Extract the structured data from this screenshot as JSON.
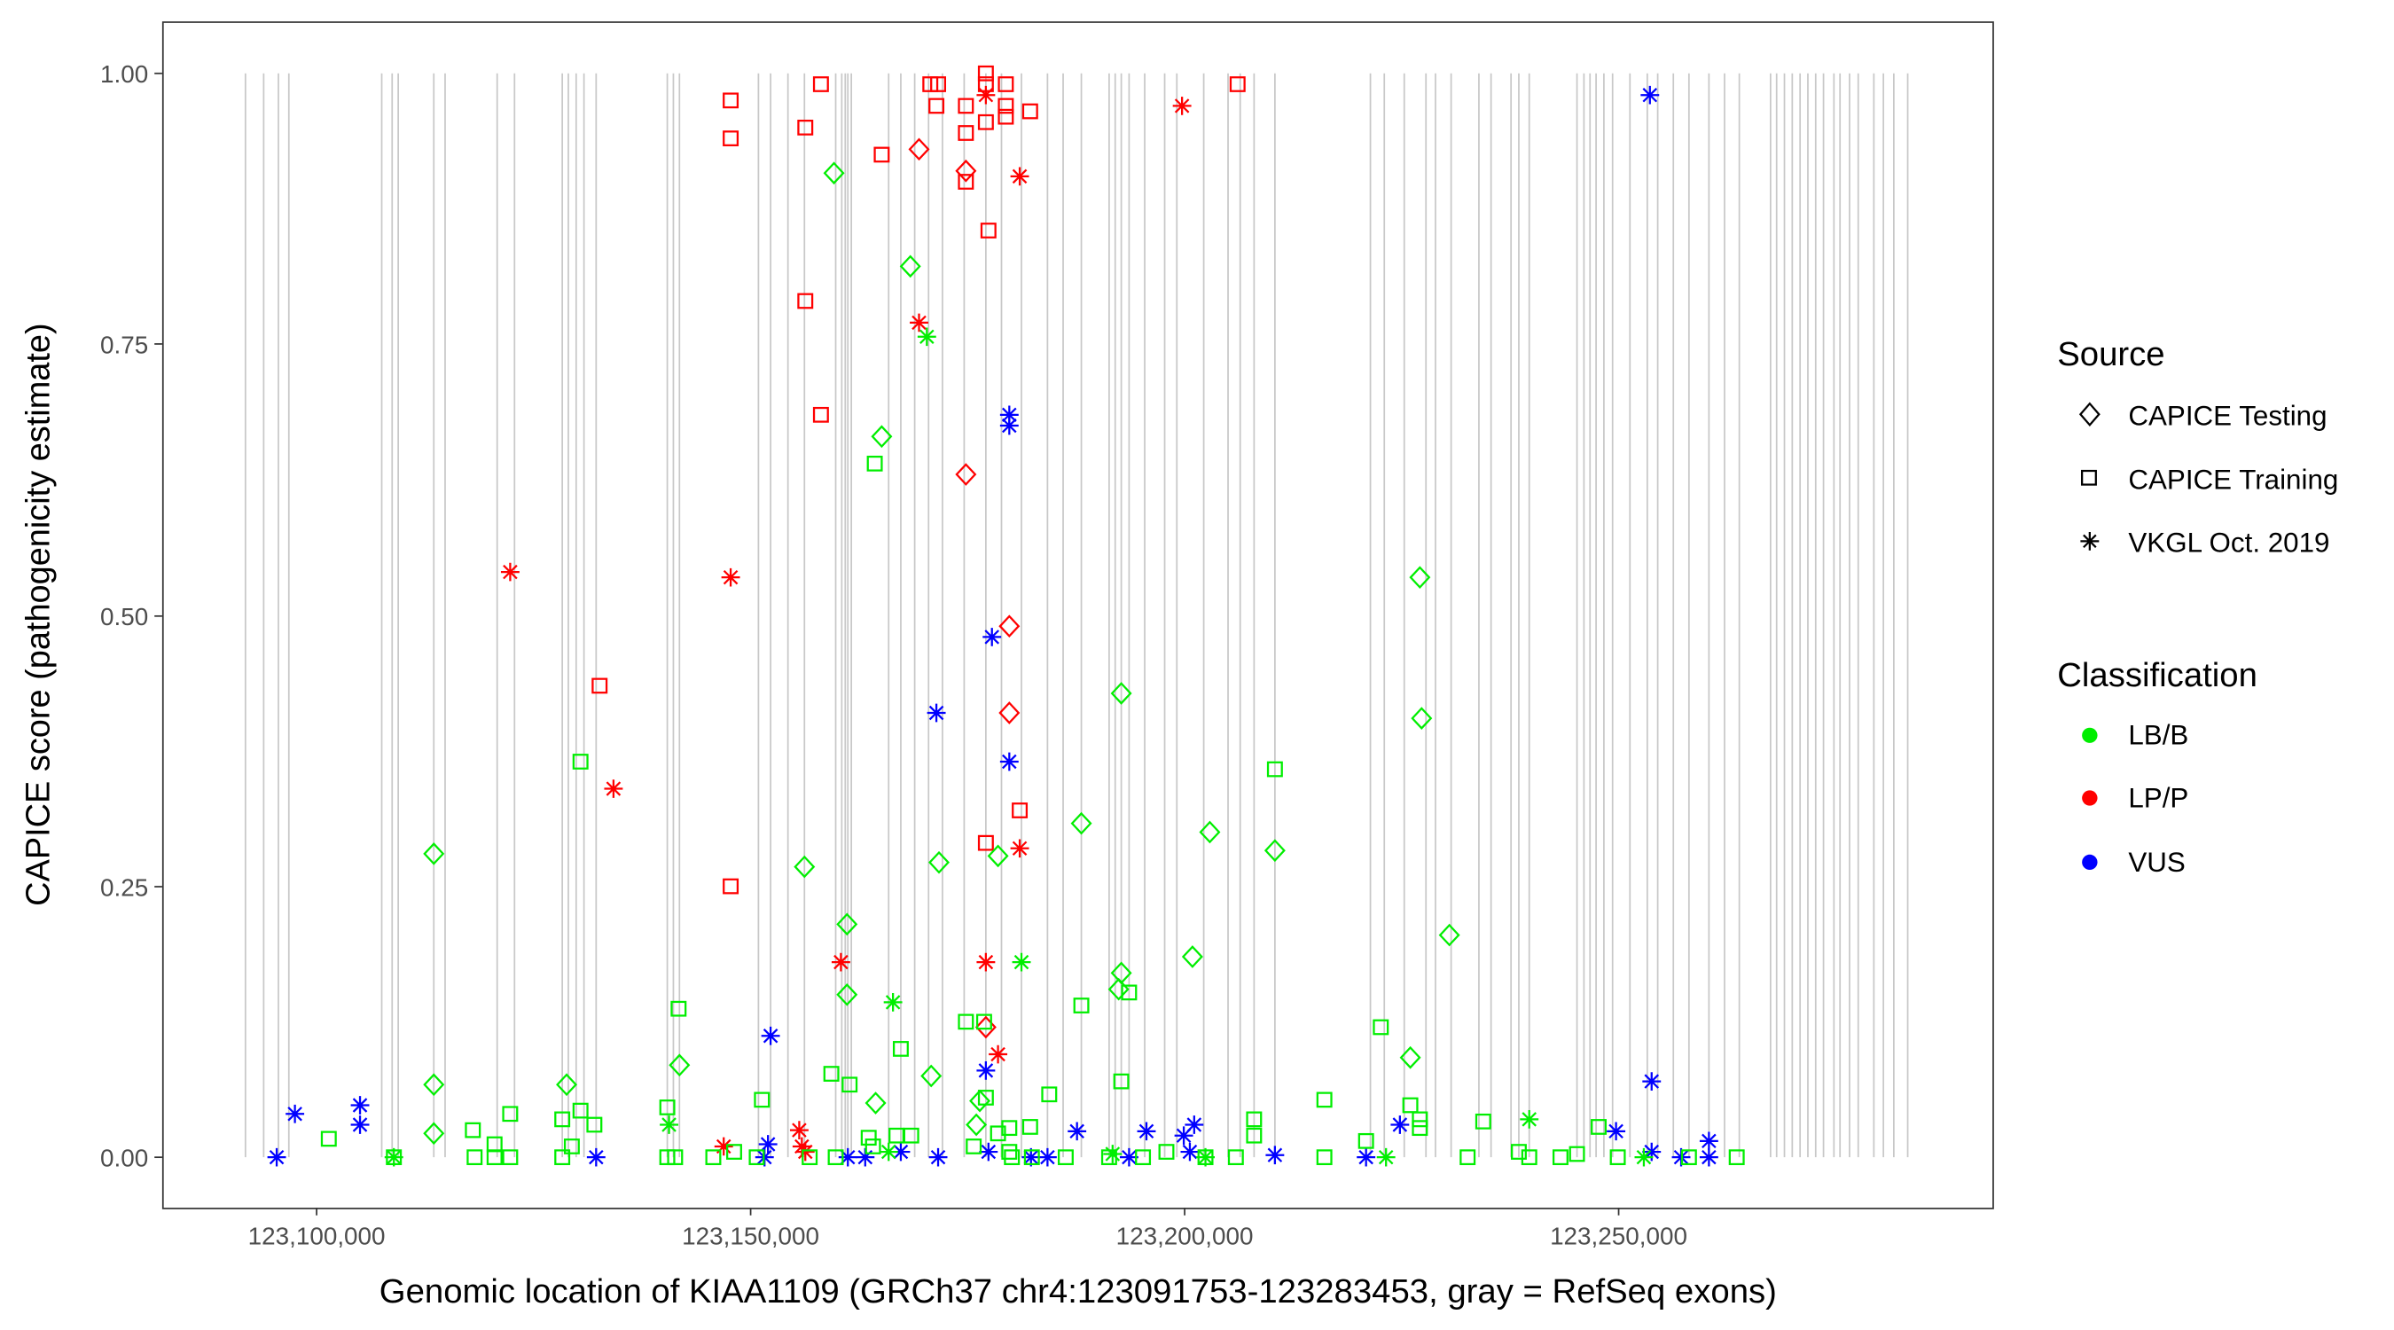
{
  "chart_data": {
    "type": "scatter",
    "xlabel": "Genomic location of KIAA1109 (GRCh37 chr4:123091753-123283453, gray = RefSeq exons)",
    "ylabel": "CAPICE score (pathogenicity estimate)",
    "x_unit": "kb",
    "xlim": [
      123088.5,
      123285.5
    ],
    "ylim": [
      -0.05,
      1.05
    ],
    "x_ticks": [
      123100,
      123150,
      123200,
      123250
    ],
    "x_tick_labels": [
      "123,100,000",
      "123,150,000",
      "123,200,000",
      "123,250,000"
    ],
    "y_ticks": [
      0,
      0.25,
      0.5,
      0.75,
      1.0
    ],
    "y_tick_labels": [
      "0.00",
      "0.25",
      "0.50",
      "0.75",
      "1.00"
    ],
    "grid": false,
    "legend_placement": "right",
    "legend": {
      "source_title": "Source",
      "sources": [
        "CAPICE Testing",
        "CAPICE Training",
        "VKGL Oct. 2019"
      ],
      "source_shapes": [
        "diamond",
        "square",
        "asterisk"
      ],
      "class_title": "Classification",
      "classes": [
        "LB/B",
        "LP/P",
        "VUS"
      ],
      "class_colors": [
        "#00ee00",
        "#ff0000",
        "#0000ff"
      ]
    },
    "exon_color": "#c8c8c8",
    "exons_kb": [
      123091.8,
      123093.9,
      123095.6,
      123096.8,
      123107.5,
      123108.7,
      123109.4,
      123113.5,
      123114.8,
      123120.8,
      123122.8,
      123128.3,
      123129.0,
      123129.9,
      123130.8,
      123132.2,
      123140.4,
      123141.1,
      123141.8,
      123150.9,
      123152.3,
      123154.3,
      123156.2,
      123159.8,
      123160.5,
      123160.9,
      123161.2,
      123161.6,
      123165.9,
      123167.3,
      123168.9,
      123170.5,
      123172.1,
      123174.6,
      123177.1,
      123178.9,
      123181.2,
      123184.2,
      123186.0,
      123188.1,
      123191.3,
      123192.0,
      123192.7,
      123193.6,
      123195.4,
      123197.7,
      123199.1,
      123202.2,
      123205.0,
      123206.4,
      123208.0,
      123210.4,
      123221.4,
      123223.0,
      123225.3,
      123227.8,
      123228.9,
      123230.7,
      123233.9,
      123235.3,
      123237.6,
      123238.5,
      123239.7,
      123245.2,
      123246.0,
      123246.7,
      123247.4,
      123248.3,
      123249.3,
      123251.3,
      123253.3,
      123254.5,
      123256.3,
      123258.1,
      123260.4,
      123262.2,
      123263.9,
      123267.5,
      123268.2,
      123269.1,
      123270.0,
      123270.9,
      123271.8,
      123272.7,
      123273.6,
      123274.8,
      123275.5,
      123276.6,
      123277.6,
      123279.4,
      123280.5,
      123281.7,
      123283.3
    ],
    "points_format": [
      "position_kb",
      "capice_score",
      "source_index",
      "class_index"
    ],
    "points": [
      [
        123165.1,
        0.925,
        1,
        1
      ],
      [
        123169.4,
        0.77,
        2,
        1
      ],
      [
        123169.4,
        0.93,
        0,
        1
      ],
      [
        123170.7,
        0.99,
        1,
        1
      ],
      [
        123171.6,
        0.99,
        1,
        1
      ],
      [
        123171.4,
        0.97,
        1,
        1
      ],
      [
        123177.4,
        0.855,
        1,
        1
      ],
      [
        123182.2,
        0.965,
        1,
        1
      ],
      [
        123178.5,
        0.095,
        2,
        1
      ],
      [
        123199.7,
        0.97,
        2,
        1
      ],
      [
        123206.1,
        0.99,
        1,
        1
      ],
      [
        123122.3,
        0.54,
        2,
        1
      ],
      [
        123155.9,
        0.01,
        2,
        1
      ],
      [
        123132.6,
        0.435,
        1,
        1
      ],
      [
        123134.2,
        0.34,
        2,
        1
      ],
      [
        123147.7,
        0.975,
        1,
        1
      ],
      [
        123147.7,
        0.94,
        1,
        1
      ],
      [
        123147.7,
        0.535,
        2,
        1
      ],
      [
        123147.7,
        0.25,
        1,
        1
      ],
      [
        123146.9,
        0.01,
        2,
        1
      ],
      [
        123156.3,
        0.95,
        1,
        1
      ],
      [
        123156.3,
        0.79,
        1,
        1
      ],
      [
        123158.1,
        0.99,
        1,
        1
      ],
      [
        123158.1,
        0.685,
        1,
        1
      ],
      [
        123160.4,
        0.18,
        2,
        1
      ],
      [
        123155.6,
        0.025,
        2,
        1
      ],
      [
        123156.3,
        0.005,
        2,
        1
      ],
      [
        123174.8,
        0.97,
        1,
        1
      ],
      [
        123174.8,
        0.945,
        1,
        1
      ],
      [
        123174.8,
        0.91,
        0,
        1
      ],
      [
        123174.8,
        0.9,
        1,
        1
      ],
      [
        123174.8,
        0.63,
        0,
        1
      ],
      [
        123177.1,
        1.0,
        1,
        1
      ],
      [
        123177.1,
        0.99,
        1,
        1
      ],
      [
        123177.1,
        0.98,
        2,
        1
      ],
      [
        123177.1,
        0.955,
        1,
        1
      ],
      [
        123179.4,
        0.99,
        1,
        1
      ],
      [
        123179.4,
        0.97,
        1,
        1
      ],
      [
        123179.4,
        0.96,
        1,
        1
      ],
      [
        123181.0,
        0.905,
        2,
        1
      ],
      [
        123179.8,
        0.49,
        0,
        1
      ],
      [
        123179.8,
        0.41,
        0,
        1
      ],
      [
        123181.0,
        0.32,
        1,
        1
      ],
      [
        123177.1,
        0.29,
        1,
        1
      ],
      [
        123181.0,
        0.285,
        2,
        1
      ],
      [
        123177.1,
        0.18,
        2,
        1
      ],
      [
        123177.1,
        0.12,
        0,
        1
      ],
      [
        123095.4,
        0.0,
        2,
        2
      ],
      [
        123097.5,
        0.04,
        2,
        2
      ],
      [
        123105.0,
        0.048,
        2,
        2
      ],
      [
        123105.0,
        0.03,
        2,
        2
      ],
      [
        123132.2,
        0.0,
        2,
        2
      ],
      [
        123151.6,
        0.0,
        2,
        2
      ],
      [
        123152.0,
        0.012,
        2,
        2
      ],
      [
        123152.3,
        0.112,
        2,
        2
      ],
      [
        123161.2,
        0.0,
        2,
        2
      ],
      [
        123163.2,
        0.0,
        2,
        2
      ],
      [
        123167.3,
        0.005,
        2,
        2
      ],
      [
        123171.4,
        0.41,
        2,
        2
      ],
      [
        123171.6,
        0.0,
        2,
        2
      ],
      [
        123177.4,
        0.005,
        2,
        2
      ],
      [
        123184.2,
        0.0,
        2,
        2
      ],
      [
        123187.6,
        0.024,
        2,
        2
      ],
      [
        123193.6,
        0.0,
        2,
        2
      ],
      [
        123195.6,
        0.024,
        2,
        2
      ],
      [
        123199.9,
        0.02,
        2,
        2
      ],
      [
        123201.1,
        0.03,
        2,
        2
      ],
      [
        123200.6,
        0.005,
        2,
        2
      ],
      [
        123210.4,
        0.002,
        2,
        2
      ],
      [
        123220.9,
        0.0,
        2,
        2
      ],
      [
        123224.8,
        0.03,
        2,
        2
      ],
      [
        123249.7,
        0.024,
        2,
        2
      ],
      [
        123253.6,
        0.98,
        2,
        2
      ],
      [
        123253.8,
        0.07,
        2,
        2
      ],
      [
        123253.8,
        0.005,
        2,
        2
      ],
      [
        123257.2,
        0.0,
        2,
        2
      ],
      [
        123260.4,
        0.015,
        2,
        2
      ],
      [
        123260.4,
        0.0,
        2,
        2
      ],
      [
        123177.8,
        0.48,
        2,
        2
      ],
      [
        123177.1,
        0.08,
        2,
        2
      ],
      [
        123179.8,
        0.685,
        2,
        2
      ],
      [
        123179.8,
        0.675,
        2,
        2
      ],
      [
        123179.8,
        0.365,
        2,
        2
      ],
      [
        123182.3,
        0.0,
        2,
        2
      ],
      [
        123159.6,
        0.908,
        0,
        0
      ],
      [
        123168.4,
        0.822,
        0,
        0
      ],
      [
        123165.1,
        0.665,
        0,
        0
      ],
      [
        123113.5,
        0.28,
        0,
        0
      ],
      [
        123113.5,
        0.067,
        0,
        0
      ],
      [
        123113.5,
        0.022,
        0,
        0
      ],
      [
        123156.2,
        0.268,
        0,
        0
      ],
      [
        123161.1,
        0.215,
        0,
        0
      ],
      [
        123161.1,
        0.15,
        0,
        0
      ],
      [
        123171.7,
        0.272,
        0,
        0
      ],
      [
        123178.5,
        0.278,
        0,
        0
      ],
      [
        123188.1,
        0.308,
        0,
        0
      ],
      [
        123192.7,
        0.428,
        0,
        0
      ],
      [
        123192.7,
        0.17,
        0,
        0
      ],
      [
        123192.4,
        0.155,
        0,
        0
      ],
      [
        123202.9,
        0.3,
        0,
        0
      ],
      [
        123200.9,
        0.185,
        0,
        0
      ],
      [
        123210.4,
        0.283,
        0,
        0
      ],
      [
        123227.1,
        0.535,
        0,
        0
      ],
      [
        123227.3,
        0.405,
        0,
        0
      ],
      [
        123230.5,
        0.205,
        0,
        0
      ],
      [
        123226.0,
        0.092,
        0,
        0
      ],
      [
        123170.8,
        0.075,
        0,
        0
      ],
      [
        123176.4,
        0.052,
        0,
        0
      ],
      [
        123141.8,
        0.085,
        0,
        0
      ],
      [
        123128.8,
        0.067,
        0,
        0
      ],
      [
        123164.4,
        0.05,
        0,
        0
      ],
      [
        123176.0,
        0.03,
        0,
        0
      ],
      [
        123130.4,
        0.365,
        1,
        0
      ],
      [
        123141.7,
        0.137,
        1,
        0
      ],
      [
        123164.3,
        0.64,
        1,
        0
      ],
      [
        123167.3,
        0.1,
        1,
        0
      ],
      [
        123159.3,
        0.077,
        1,
        0
      ],
      [
        123161.4,
        0.067,
        1,
        0
      ],
      [
        123151.3,
        0.053,
        1,
        0
      ],
      [
        123193.6,
        0.152,
        1,
        0
      ],
      [
        123188.1,
        0.14,
        1,
        0
      ],
      [
        123210.4,
        0.358,
        1,
        0
      ],
      [
        123222.6,
        0.12,
        1,
        0
      ],
      [
        123216.1,
        0.053,
        1,
        0
      ],
      [
        123184.4,
        0.058,
        1,
        0
      ],
      [
        123192.7,
        0.07,
        1,
        0
      ],
      [
        123208.0,
        0.035,
        1,
        0
      ],
      [
        123208.0,
        0.02,
        1,
        0
      ],
      [
        123234.4,
        0.033,
        1,
        0
      ],
      [
        123226.0,
        0.048,
        1,
        0
      ],
      [
        123227.1,
        0.035,
        1,
        0
      ],
      [
        123227.1,
        0.027,
        1,
        0
      ],
      [
        123247.7,
        0.028,
        1,
        0
      ],
      [
        123174.8,
        0.125,
        1,
        0
      ],
      [
        123176.9,
        0.125,
        1,
        0
      ],
      [
        123177.1,
        0.055,
        1,
        0
      ],
      [
        123179.8,
        0.027,
        1,
        0
      ],
      [
        123122.3,
        0.04,
        1,
        0
      ],
      [
        123118.0,
        0.025,
        1,
        0
      ],
      [
        123132.0,
        0.03,
        1,
        0
      ],
      [
        123130.4,
        0.043,
        1,
        0
      ],
      [
        123128.3,
        0.035,
        1,
        0
      ],
      [
        123101.4,
        0.017,
        1,
        0
      ],
      [
        123120.5,
        0.012,
        1,
        0
      ],
      [
        123140.4,
        0.046,
        1,
        0
      ],
      [
        123182.2,
        0.028,
        1,
        0
      ],
      [
        123178.5,
        0.022,
        1,
        0
      ],
      [
        123163.6,
        0.018,
        1,
        0
      ],
      [
        123108.9,
        0.0,
        1,
        0
      ],
      [
        123118.2,
        0.0,
        1,
        0
      ],
      [
        123120.5,
        0.0,
        1,
        0
      ],
      [
        123122.3,
        0.0,
        1,
        0
      ],
      [
        123128.3,
        0.0,
        1,
        0
      ],
      [
        123129.4,
        0.01,
        1,
        0
      ],
      [
        123140.4,
        0.0,
        1,
        0
      ],
      [
        123141.3,
        0.0,
        1,
        0
      ],
      [
        123145.7,
        0.0,
        1,
        0
      ],
      [
        123148.1,
        0.005,
        1,
        0
      ],
      [
        123150.7,
        0.0,
        1,
        0
      ],
      [
        123156.8,
        0.0,
        1,
        0
      ],
      [
        123159.8,
        0.0,
        1,
        0
      ],
      [
        123164.1,
        0.01,
        1,
        0
      ],
      [
        123166.8,
        0.02,
        1,
        0
      ],
      [
        123168.5,
        0.02,
        1,
        0
      ],
      [
        123175.7,
        0.01,
        1,
        0
      ],
      [
        123180.1,
        0.0,
        1,
        0
      ],
      [
        123182.4,
        0.0,
        1,
        0
      ],
      [
        123186.3,
        0.0,
        1,
        0
      ],
      [
        123191.3,
        0.0,
        1,
        0
      ],
      [
        123195.2,
        0.0,
        1,
        0
      ],
      [
        123197.9,
        0.005,
        1,
        0
      ],
      [
        123202.4,
        0.0,
        1,
        0
      ],
      [
        123205.9,
        0.0,
        1,
        0
      ],
      [
        123216.1,
        0.0,
        1,
        0
      ],
      [
        123220.9,
        0.015,
        1,
        0
      ],
      [
        123232.6,
        0.0,
        1,
        0
      ],
      [
        123238.5,
        0.005,
        1,
        0
      ],
      [
        123239.7,
        0.0,
        1,
        0
      ],
      [
        123243.3,
        0.0,
        1,
        0
      ],
      [
        123245.2,
        0.003,
        1,
        0
      ],
      [
        123249.9,
        0.0,
        1,
        0
      ],
      [
        123258.1,
        0.0,
        1,
        0
      ],
      [
        123263.6,
        0.0,
        1,
        0
      ],
      [
        123179.8,
        0.005,
        1,
        0
      ],
      [
        123108.9,
        0.0,
        2,
        0
      ],
      [
        123140.6,
        0.03,
        2,
        0
      ],
      [
        123166.4,
        0.143,
        2,
        0
      ],
      [
        123181.2,
        0.18,
        2,
        0
      ],
      [
        123170.3,
        0.757,
        2,
        0
      ],
      [
        123239.7,
        0.035,
        2,
        0
      ],
      [
        123223.2,
        0.0,
        2,
        0
      ],
      [
        123252.9,
        0.0,
        2,
        0
      ],
      [
        123202.4,
        0.0,
        2,
        0
      ],
      [
        123165.9,
        0.005,
        2,
        0
      ],
      [
        123191.7,
        0.003,
        2,
        0
      ]
    ]
  }
}
